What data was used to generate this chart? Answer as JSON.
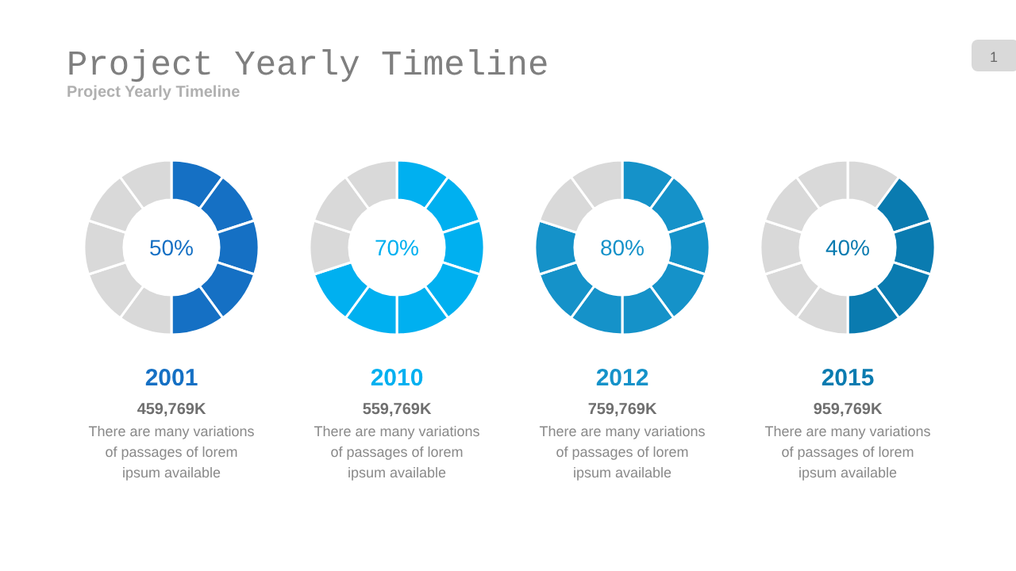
{
  "chart_data": [
    {
      "type": "other",
      "title": "Project Yearly Timeline",
      "subtitle": "Project Yearly Timeline",
      "annotations": [
        "1"
      ]
    },
    {
      "type": "donut",
      "title": "2001",
      "subtitle": "459,769K",
      "categories": [
        null,
        null,
        null,
        null,
        null,
        null,
        null,
        null,
        null,
        null
      ],
      "values": [
        10,
        10,
        10,
        10,
        10,
        10,
        10,
        10,
        10,
        10
      ],
      "colors": [
        "#1570c4",
        "#1570c4",
        "#1570c4",
        "#1570c4",
        "#1570c4",
        "#d9d9d9",
        "#d9d9d9",
        "#d9d9d9",
        "#d9d9d9",
        "#d9d9d9"
      ],
      "annotations": [
        "50%",
        "There are many variations of passages of lorem ipsum available"
      ]
    },
    {
      "type": "donut",
      "title": "2010",
      "subtitle": "559,769K",
      "categories": [
        null,
        null,
        null,
        null,
        null,
        null,
        null,
        null,
        null,
        null
      ],
      "values": [
        10,
        10,
        10,
        10,
        10,
        10,
        10,
        10,
        10,
        10
      ],
      "colors": [
        "#00b0f0",
        "#00b0f0",
        "#00b0f0",
        "#00b0f0",
        "#00b0f0",
        "#00b0f0",
        "#00b0f0",
        "#d9d9d9",
        "#d9d9d9",
        "#d9d9d9"
      ],
      "annotations": [
        "70%",
        "There are many variations of passages of lorem ipsum available"
      ]
    },
    {
      "type": "donut",
      "title": "2012",
      "subtitle": "759,769K",
      "categories": [
        null,
        null,
        null,
        null,
        null,
        null,
        null,
        null,
        null,
        null
      ],
      "values": [
        10,
        10,
        10,
        10,
        10,
        10,
        10,
        10,
        10,
        10
      ],
      "colors": [
        "#1592c9",
        "#1592c9",
        "#1592c9",
        "#1592c9",
        "#1592c9",
        "#1592c9",
        "#1592c9",
        "#1592c9",
        "#d9d9d9",
        "#d9d9d9"
      ],
      "annotations": [
        "80%",
        "There are many variations of passages of lorem ipsum available"
      ]
    },
    {
      "type": "donut",
      "title": "2015",
      "subtitle": "959,769K",
      "categories": [
        null,
        null,
        null,
        null,
        null,
        null,
        null,
        null,
        null,
        null
      ],
      "values": [
        10,
        10,
        10,
        10,
        10,
        10,
        10,
        10,
        10,
        10
      ],
      "colors": [
        "#d9d9d9",
        "#0a7bb0",
        "#0a7bb0",
        "#0a7bb0",
        "#0a7bb0",
        "#d9d9d9",
        "#d9d9d9",
        "#d9d9d9",
        "#d9d9d9",
        "#d9d9d9"
      ],
      "annotations": [
        "40%",
        "There are many variations of passages of lorem ipsum available"
      ]
    }
  ]
}
